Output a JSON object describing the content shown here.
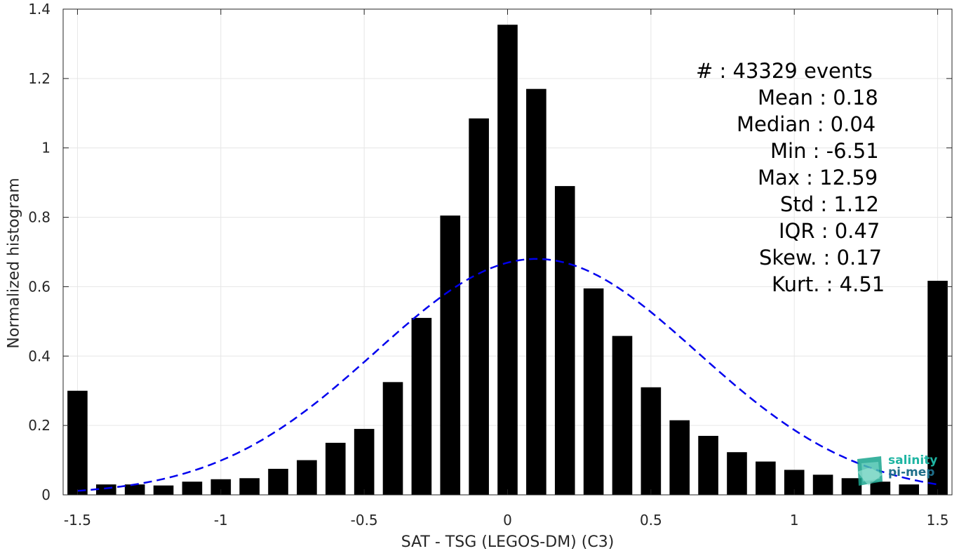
{
  "chart_data": {
    "type": "bar",
    "xlabel": "SAT - TSG (LEGOS-DM) (C3)",
    "ylabel": "Normalized histogram",
    "xlim": [
      -1.55,
      1.55
    ],
    "ylim": [
      0,
      1.4
    ],
    "xticks": [
      -1.5,
      -1,
      -0.5,
      0,
      0.5,
      1,
      1.5
    ],
    "xtick_labels": [
      "-1.5",
      "-1",
      "-0.5",
      "0",
      "0.5",
      "1",
      "1.5"
    ],
    "yticks": [
      0,
      0.2,
      0.4,
      0.6,
      0.8,
      1,
      1.2,
      1.4
    ],
    "ytick_labels": [
      "0",
      "0.2",
      "0.4",
      "0.6",
      "0.8",
      "1",
      "1.2",
      "1.4"
    ],
    "grid": true,
    "bar_color": "#000000",
    "bar_x": [
      -1.5,
      -1.4,
      -1.3,
      -1.2,
      -1.1,
      -1.0,
      -0.9,
      -0.8,
      -0.7,
      -0.6,
      -0.5,
      -0.4,
      -0.3,
      -0.2,
      -0.1,
      0.0,
      0.1,
      0.2,
      0.3,
      0.4,
      0.5,
      0.6,
      0.7,
      0.8,
      0.9,
      1.0,
      1.1,
      1.2,
      1.3,
      1.4,
      1.5
    ],
    "bar_values": [
      0.3,
      0.03,
      0.03,
      0.027,
      0.038,
      0.045,
      0.048,
      0.075,
      0.1,
      0.15,
      0.19,
      0.325,
      0.51,
      0.805,
      1.085,
      1.355,
      1.17,
      0.89,
      0.595,
      0.458,
      0.31,
      0.215,
      0.17,
      0.123,
      0.096,
      0.072,
      0.058,
      0.048,
      0.038,
      0.03,
      0.617
    ],
    "fit_curve": {
      "type": "gaussian",
      "mean": 0.1,
      "peak": 0.68,
      "sigma": 0.56,
      "x_range": [
        -1.5,
        1.5
      ],
      "color": "#0000ee",
      "style": "dashed"
    },
    "annotations": [
      {
        "label": "#  : 43329 events"
      },
      {
        "label": "Mean : 0.18"
      },
      {
        "label": "Median : 0.04"
      },
      {
        "label": "Min : -6.51"
      },
      {
        "label": "Max : 12.59"
      },
      {
        "label": "Std : 1.12"
      },
      {
        "label": "IQR : 0.47"
      },
      {
        "label": "Skew. : 0.17"
      },
      {
        "label": "Kurt. : 4.51"
      }
    ]
  },
  "logo": {
    "line1": "salinity",
    "line2": "pi-mep",
    "icon": "salinity-pimep-logo-icon"
  }
}
